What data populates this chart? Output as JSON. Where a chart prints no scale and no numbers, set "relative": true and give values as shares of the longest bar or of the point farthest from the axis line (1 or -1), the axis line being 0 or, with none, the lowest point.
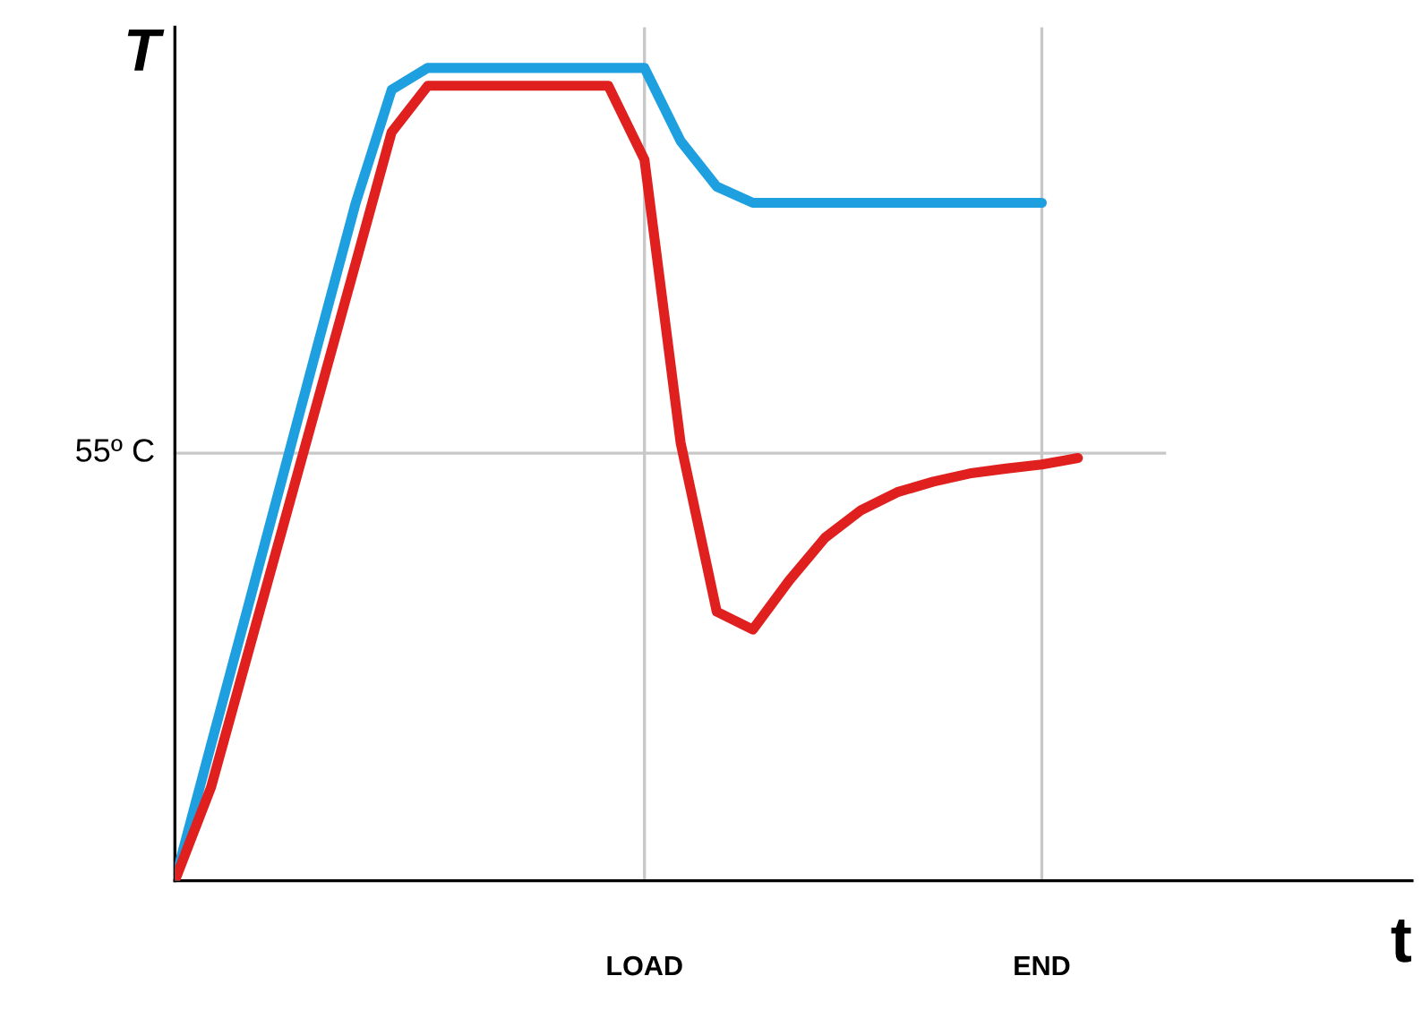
{
  "chart_data": {
    "type": "line",
    "relative": true,
    "xlabel": "t",
    "ylabel": "T",
    "legend": false,
    "marker": "none",
    "line_style": "solid",
    "tick_labels": "x",
    "categories": [
      null,
      null,
      null,
      null,
      null,
      null,
      null,
      null,
      null,
      null,
      null,
      null,
      null,
      "LOAD",
      null,
      null,
      null,
      null,
      null,
      null,
      null,
      null,
      null,
      null,
      "END",
      null
    ],
    "series": [
      {
        "color": "#1ea0e0",
        "values": [
          0,
          0.167,
          0.333,
          0.5,
          0.667,
          0.833,
          0.973,
          1,
          1,
          1,
          1,
          1,
          1,
          1,
          0.91,
          0.854,
          0.834,
          0.834,
          0.834,
          0.834,
          0.834,
          0.834,
          0.834,
          0.834,
          0.834,
          null
        ]
      },
      {
        "color": "#e0201e",
        "values": [
          0,
          0.115,
          0.276,
          0.437,
          0.598,
          0.759,
          0.921,
          0.978,
          0.978,
          0.978,
          0.978,
          0.978,
          0.978,
          0.887,
          0.539,
          0.331,
          0.309,
          0.369,
          0.422,
          0.456,
          0.478,
          0.491,
          0.501,
          0.507,
          0.512,
          0.52
        ]
      }
    ],
    "ref_lines": [
      {
        "axis": "y",
        "value": 0.526,
        "label": "55º C",
        "color": "#c8c8c8"
      },
      {
        "axis": "x",
        "value": "LOAD",
        "color": "#c8c8c8"
      },
      {
        "axis": "x",
        "value": "END",
        "color": "#c8c8c8"
      }
    ]
  }
}
